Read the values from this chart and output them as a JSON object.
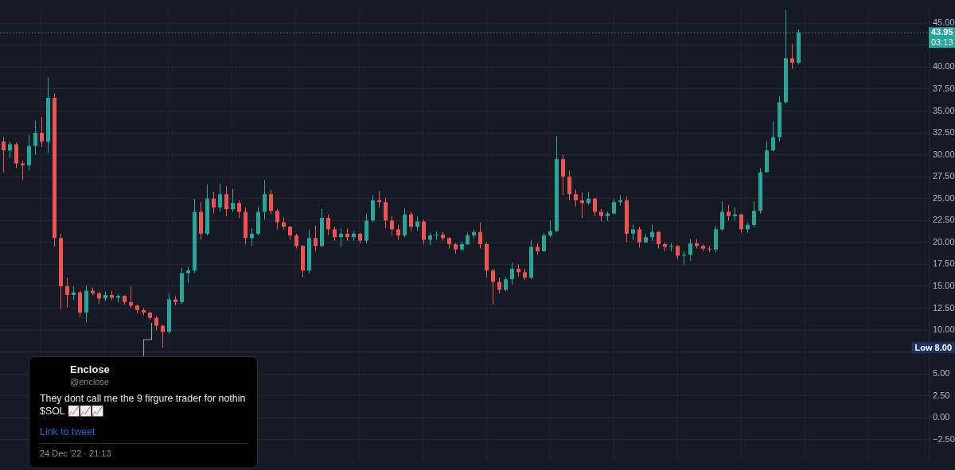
{
  "chart_data": {
    "type": "candlestick",
    "categories": [
      null,
      null,
      null,
      null,
      null,
      null,
      null,
      null,
      null,
      null,
      null,
      null,
      null,
      null,
      null,
      null,
      null,
      null,
      null,
      null,
      null,
      null,
      null,
      null,
      null,
      null,
      null,
      null,
      null,
      null,
      null,
      null,
      null,
      null,
      null,
      null,
      null,
      null,
      null,
      null,
      null,
      null,
      null,
      null,
      null,
      null,
      null,
      null,
      null,
      null,
      null,
      null,
      null,
      null,
      null,
      null,
      null,
      null,
      null,
      null,
      null,
      null,
      null,
      null,
      null,
      null,
      null,
      null,
      null,
      null,
      null,
      null,
      null,
      null,
      null,
      null,
      null,
      null,
      null,
      null,
      null,
      null,
      null,
      null,
      null,
      null,
      null,
      null,
      null,
      null,
      null,
      null,
      null,
      null,
      null,
      null,
      null,
      null,
      null,
      null,
      null,
      null,
      null,
      null,
      null,
      null,
      null,
      null,
      null,
      null,
      null,
      null,
      null,
      null,
      null,
      null,
      null,
      null,
      null,
      null,
      null,
      null,
      null,
      null,
      null,
      null,
      null,
      null,
      null,
      null,
      null,
      null,
      null,
      null,
      null,
      null,
      null,
      null,
      null,
      null,
      null,
      null,
      null,
      null,
      null,
      null
    ],
    "ohlc": [
      [
        31.5,
        32,
        28,
        30.5
      ],
      [
        30.5,
        31.5,
        29.6,
        31.2
      ],
      [
        31.2,
        31.4,
        28.5,
        29
      ],
      [
        29,
        29.3,
        27.1,
        28.8
      ],
      [
        28.8,
        32.3,
        28.2,
        31
      ],
      [
        31,
        33.9,
        30,
        32.5
      ],
      [
        32.5,
        34.3,
        30.9,
        31.5
      ],
      [
        31.5,
        38.8,
        30.2,
        36.5
      ],
      [
        36.5,
        37,
        19.5,
        20.5
      ],
      [
        20.5,
        21,
        12.4,
        15
      ],
      [
        15,
        16,
        12.6,
        14
      ],
      [
        14,
        15,
        13.5,
        14.3
      ],
      [
        14.3,
        14.5,
        11.5,
        12
      ],
      [
        12,
        15.1,
        10.9,
        14.5
      ],
      [
        14.5,
        14.9,
        14,
        14.2
      ],
      [
        14.2,
        14.4,
        13,
        13.6
      ],
      [
        13.6,
        14.4,
        13.3,
        14
      ],
      [
        14,
        14.5,
        13.4,
        13.7
      ],
      [
        13.7,
        14.1,
        13.2,
        13.9
      ],
      [
        13.9,
        14,
        12.9,
        13.2
      ],
      [
        13.2,
        15,
        12.5,
        12.8
      ],
      [
        12.8,
        12.9,
        11.9,
        12.3
      ],
      [
        12.3,
        12.5,
        11.7,
        12
      ],
      [
        12,
        12.1,
        11.2,
        11.4
      ],
      [
        11.4,
        11.6,
        10,
        10.5
      ],
      [
        10.5,
        10.6,
        8,
        9.8
      ],
      [
        9.8,
        14.2,
        9.6,
        13.5
      ],
      [
        13.5,
        13.9,
        12.8,
        13.2
      ],
      [
        13.2,
        17.1,
        13,
        16.5
      ],
      [
        16.5,
        17.2,
        15.4,
        16.8
      ],
      [
        16.8,
        25,
        16.5,
        23.5
      ],
      [
        23.5,
        24.6,
        20.3,
        21
      ],
      [
        21,
        26.6,
        20.8,
        25
      ],
      [
        25,
        25.8,
        23.3,
        24
      ],
      [
        24,
        26.7,
        23.5,
        25.5
      ],
      [
        25.5,
        26.4,
        23,
        23.8
      ],
      [
        23.8,
        26.1,
        23.5,
        24.5
      ],
      [
        24.5,
        24.8,
        22.8,
        23.5
      ],
      [
        23.5,
        24,
        19.8,
        20.5
      ],
      [
        20.5,
        21.6,
        19.6,
        21
      ],
      [
        21,
        24.1,
        20.8,
        23.5
      ],
      [
        23.5,
        27.1,
        22.6,
        25.5
      ],
      [
        25.5,
        26,
        23.2,
        23.6
      ],
      [
        23.6,
        23.8,
        21.5,
        22.3
      ],
      [
        22.3,
        22.9,
        21.5,
        21.8
      ],
      [
        21.8,
        21.9,
        20.3,
        20.8
      ],
      [
        20.8,
        21,
        19.3,
        19.6
      ],
      [
        19.6,
        19.7,
        16,
        16.8
      ],
      [
        16.8,
        21.5,
        16.5,
        20.5
      ],
      [
        20.5,
        21.9,
        19,
        19.6
      ],
      [
        19.6,
        23.8,
        19.5,
        22.8
      ],
      [
        22.8,
        23.2,
        20.8,
        21.5
      ],
      [
        21.5,
        21.8,
        20.2,
        20.6
      ],
      [
        20.6,
        21.6,
        19.5,
        21
      ],
      [
        21,
        21.6,
        20.2,
        20.6
      ],
      [
        20.6,
        21.3,
        20.2,
        21
      ],
      [
        21,
        21.1,
        19.9,
        20.2
      ],
      [
        20.2,
        23.3,
        19.9,
        22.5
      ],
      [
        22.5,
        25.4,
        22.3,
        24.8
      ],
      [
        24.8,
        25.9,
        24,
        24.6
      ],
      [
        24.6,
        25.1,
        21.6,
        22.5
      ],
      [
        22.5,
        23,
        20.8,
        21.5
      ],
      [
        21.5,
        22,
        20.3,
        20.8
      ],
      [
        20.8,
        23.9,
        20.6,
        23.2
      ],
      [
        23.2,
        23.5,
        21.3,
        21.8
      ],
      [
        21.8,
        23,
        21.3,
        22.4
      ],
      [
        22.4,
        22.6,
        19.8,
        20.3
      ],
      [
        20.3,
        21.1,
        19.7,
        20.8
      ],
      [
        20.8,
        21.3,
        20.3,
        20.9
      ],
      [
        20.9,
        21.2,
        20.2,
        20.5
      ],
      [
        20.5,
        20.6,
        19.3,
        19.8
      ],
      [
        19.8,
        19.9,
        18.7,
        19.2
      ],
      [
        19.2,
        20.1,
        19,
        19.8
      ],
      [
        19.8,
        21.2,
        19.7,
        20.8
      ],
      [
        20.8,
        21.5,
        20.4,
        21.2
      ],
      [
        21.2,
        22.3,
        19.3,
        19.8
      ],
      [
        19.8,
        20,
        16,
        16.8
      ],
      [
        16.8,
        17,
        12.9,
        15.5
      ],
      [
        15.5,
        16,
        14.2,
        14.6
      ],
      [
        14.6,
        16.1,
        14.4,
        15.8
      ],
      [
        15.8,
        17.7,
        15.2,
        17
      ],
      [
        17,
        17.5,
        16.1,
        16.6
      ],
      [
        16.6,
        17,
        15.7,
        16
      ],
      [
        16,
        20.3,
        15.8,
        19.5
      ],
      [
        19.5,
        19.9,
        18.6,
        19
      ],
      [
        19,
        21.1,
        18.9,
        20.8
      ],
      [
        20.8,
        22.5,
        20.6,
        21.3
      ],
      [
        21.3,
        32.1,
        21.2,
        29.5
      ],
      [
        29.5,
        30,
        25.4,
        27.5
      ],
      [
        27.5,
        28.2,
        24.8,
        25.5
      ],
      [
        25.5,
        26,
        24.1,
        24.8
      ],
      [
        24.8,
        25.7,
        22.8,
        24.5
      ],
      [
        24.5,
        25.8,
        24.3,
        25
      ],
      [
        25,
        25.1,
        23,
        23.5
      ],
      [
        23.5,
        23.8,
        22.4,
        23
      ],
      [
        23,
        23.5,
        22.4,
        23.3
      ],
      [
        23.3,
        25,
        23.2,
        24.6
      ],
      [
        24.6,
        25.4,
        24.2,
        24.8
      ],
      [
        24.8,
        25.2,
        20,
        21
      ],
      [
        21,
        22,
        20.3,
        21.5
      ],
      [
        21.5,
        21.8,
        19.4,
        20
      ],
      [
        20,
        21,
        19.9,
        20.6
      ],
      [
        20.6,
        22,
        20.2,
        21.2
      ],
      [
        21.2,
        21.3,
        19.3,
        19.8
      ],
      [
        19.8,
        20,
        19,
        19.5
      ],
      [
        19.5,
        19.9,
        19,
        19.6
      ],
      [
        19.6,
        19.7,
        18.1,
        18.5
      ],
      [
        18.5,
        19,
        17.4,
        18.6
      ],
      [
        18.6,
        20.4,
        17.9,
        19.9
      ],
      [
        19.9,
        20.4,
        19.3,
        19.6
      ],
      [
        19.6,
        19.8,
        19,
        19.3
      ],
      [
        19.3,
        19.6,
        18.9,
        19.2
      ],
      [
        19.2,
        21.9,
        18.9,
        21.5
      ],
      [
        21.5,
        24.7,
        21.3,
        23.5
      ],
      [
        23.5,
        24.3,
        22.5,
        23
      ],
      [
        23,
        24,
        22.5,
        23.2
      ],
      [
        23.2,
        23.3,
        21.1,
        21.5
      ],
      [
        21.5,
        22.3,
        21.1,
        22
      ],
      [
        22,
        24.7,
        21.8,
        23.6
      ],
      [
        23.6,
        28.5,
        23.3,
        28
      ],
      [
        28,
        31.6,
        28,
        30.5
      ],
      [
        30.5,
        33.8,
        30.4,
        32
      ],
      [
        32,
        36.7,
        31.5,
        36
      ],
      [
        36,
        46.5,
        35.8,
        41
      ],
      [
        41,
        42.6,
        39.8,
        40.5
      ],
      [
        40.5,
        44.3,
        40.3,
        43.95
      ],
      null,
      null,
      null,
      null,
      null,
      null,
      null,
      null,
      null,
      null,
      null,
      null,
      null,
      null,
      null,
      null,
      null,
      null,
      null,
      null
    ],
    "colors": [
      "#ef5350",
      "#26a69a",
      "#ef5350",
      "#ef5350",
      "#26a69a",
      "#26a69a",
      "#ef5350",
      "#26a69a",
      "#ef5350",
      "#ef5350",
      "#ef5350",
      "#26a69a",
      "#ef5350",
      "#26a69a",
      "#ef5350",
      "#ef5350",
      "#26a69a",
      "#ef5350",
      "#26a69a",
      "#ef5350",
      "#ef5350",
      "#ef5350",
      "#ef5350",
      "#ef5350",
      "#ef5350",
      "#ef5350",
      "#26a69a",
      "#ef5350",
      "#26a69a",
      "#26a69a",
      "#26a69a",
      "#ef5350",
      "#26a69a",
      "#ef5350",
      "#26a69a",
      "#ef5350",
      "#26a69a",
      "#ef5350",
      "#ef5350",
      "#26a69a",
      "#26a69a",
      "#26a69a",
      "#ef5350",
      "#ef5350",
      "#ef5350",
      "#ef5350",
      "#ef5350",
      "#ef5350",
      "#26a69a",
      "#ef5350",
      "#26a69a",
      "#ef5350",
      "#ef5350",
      "#26a69a",
      "#ef5350",
      "#26a69a",
      "#ef5350",
      "#26a69a",
      "#26a69a",
      "#ef5350",
      "#ef5350",
      "#ef5350",
      "#ef5350",
      "#26a69a",
      "#ef5350",
      "#26a69a",
      "#ef5350",
      "#26a69a",
      "#26a69a",
      "#ef5350",
      "#ef5350",
      "#ef5350",
      "#26a69a",
      "#26a69a",
      "#26a69a",
      "#ef5350",
      "#ef5350",
      "#ef5350",
      "#ef5350",
      "#26a69a",
      "#26a69a",
      "#ef5350",
      "#ef5350",
      "#26a69a",
      "#ef5350",
      "#26a69a",
      "#26a69a",
      "#26a69a",
      "#ef5350",
      "#ef5350",
      "#ef5350",
      "#ef5350",
      "#26a69a",
      "#ef5350",
      "#ef5350",
      "#26a69a",
      "#26a69a",
      "#26a69a",
      "#ef5350",
      "#26a69a",
      "#ef5350",
      "#26a69a",
      "#26a69a",
      "#ef5350",
      "#ef5350",
      "#26a69a",
      "#ef5350",
      "#26a69a",
      "#26a69a",
      "#ef5350",
      "#ef5350",
      "#ef5350",
      "#26a69a",
      "#26a69a",
      "#ef5350",
      "#26a69a",
      "#ef5350",
      "#26a69a",
      "#26a69a",
      "#26a69a",
      "#26a69a",
      "#26a69a",
      "#26a69a",
      "#26a69a",
      "#ef5350",
      "#26a69a",
      null,
      null,
      null,
      null,
      null,
      null,
      null,
      null,
      null,
      null,
      null,
      null,
      null,
      null,
      null,
      null,
      null,
      null,
      null,
      null
    ],
    "ylim": [
      -4.9,
      46.6
    ],
    "yticks": [
      {
        "value": 45,
        "label": "45.00"
      },
      {
        "value": 42.5,
        "label": null
      },
      {
        "value": 40,
        "label": "40.00"
      },
      {
        "value": 37.5,
        "label": "37.50"
      },
      {
        "value": 35,
        "label": "35.00"
      },
      {
        "value": 32.5,
        "label": "32.50"
      },
      {
        "value": 30,
        "label": "30.00"
      },
      {
        "value": 27.5,
        "label": "27.50"
      },
      {
        "value": 25,
        "label": "25.00"
      },
      {
        "value": 22.5,
        "label": "22.50"
      },
      {
        "value": 20,
        "label": "20.00"
      },
      {
        "value": 17.5,
        "label": "17.50"
      },
      {
        "value": 15,
        "label": "15.00"
      },
      {
        "value": 12.5,
        "label": "12.50"
      },
      {
        "value": 10,
        "label": "10.00"
      },
      {
        "value": 7.5,
        "label": null
      },
      {
        "value": 5,
        "label": "5.00"
      },
      {
        "value": 2.5,
        "label": "2.50"
      },
      {
        "value": 0,
        "label": "0.00"
      },
      {
        "value": -2.5,
        "label": "−2.50"
      }
    ],
    "grid": true,
    "tick_labels": "y",
    "ref_lines": [
      {
        "axis": "y",
        "value": 43.95,
        "label": "43.95",
        "color": "#26a69a",
        "line_style": "dotted"
      }
    ],
    "annotations": [
      {
        "text": "03:13",
        "y": 43.95
      },
      "Low 8.00",
      "Enclose",
      "@enclose",
      "They dont call me the 9 firgure trader for nothin $SOL 📈📈📈",
      "Link to tweet",
      "24 Dec '22 · 21:13"
    ]
  }
}
